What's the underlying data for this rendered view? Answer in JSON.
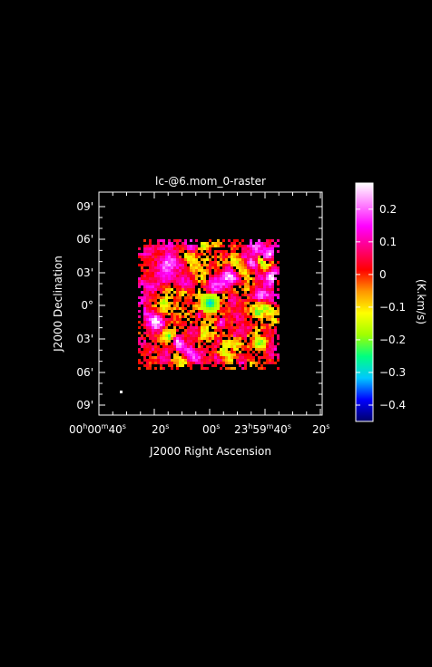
{
  "chart_data": {
    "type": "heatmap",
    "title": "lc-@6.mom_0-raster",
    "xlabel": "J2000 Right Ascension",
    "ylabel": "J2000 Declination",
    "x_ticks": [
      {
        "main": "00",
        "sup1": "h",
        "mid": "00",
        "sup2": "m",
        "sec": "40",
        "sup3": "s"
      },
      {
        "main": "20",
        "sup1": "s"
      },
      {
        "main": "00",
        "sup1": "s"
      },
      {
        "main": "23",
        "sup1": "h",
        "mid": "59",
        "sup2": "m",
        "sec": "40",
        "sup3": "s"
      },
      {
        "main": "20",
        "sup1": "s"
      }
    ],
    "y_ticks": [
      "09'",
      "06'",
      "03'",
      "0°",
      "03'",
      "06'",
      "09'"
    ],
    "colorbar": {
      "label": "(K.km/s)",
      "range": [
        -0.45,
        0.28
      ],
      "ticks": [
        "0.2",
        "0.1",
        "0",
        "−0.1",
        "−0.2",
        "−0.3",
        "−0.4"
      ],
      "tick_values": [
        0.2,
        0.1,
        0.0,
        -0.1,
        -0.2,
        -0.3,
        -0.4
      ],
      "colormap_stops": [
        "#00006a",
        "#0000ff",
        "#00c8ff",
        "#00ff80",
        "#a0ff00",
        "#ffff00",
        "#ff9600",
        "#ff0000",
        "#ff0080",
        "#ff00ff",
        "#ff80ff",
        "#ffffff"
      ]
    },
    "map_extent_arcmin": {
      "ra_min": -5.5,
      "ra_max": 5.5,
      "dec_min": -5.5,
      "dec_max": 5.5
    },
    "grid": false,
    "colors": {
      "background": "#000000",
      "axes": "#ffffff"
    }
  }
}
